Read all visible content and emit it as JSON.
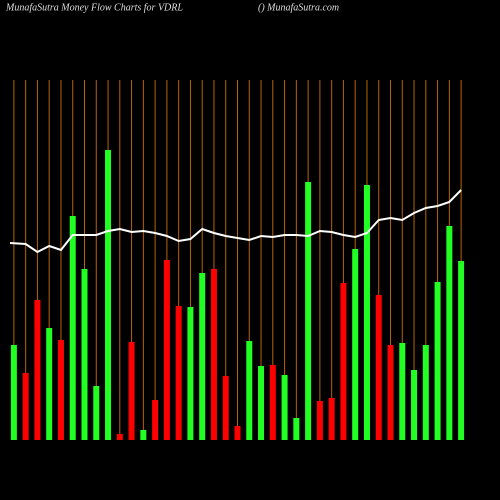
{
  "chart_data": {
    "type": "bar",
    "title": "MunafaSutra  Money Flow  Charts for VDRL",
    "site": "() MunafaSutra.com",
    "ylim": [
      0,
      300
    ],
    "grid_color": "#b8620a",
    "bars": {
      "values": [
        95,
        67,
        140,
        112,
        100,
        224,
        171,
        54,
        290,
        6,
        98,
        10,
        40,
        180,
        134,
        133,
        167,
        171,
        64,
        14,
        99,
        74,
        75,
        65,
        22,
        258,
        39,
        42,
        157,
        191,
        255,
        145,
        95,
        97,
        70,
        95,
        158,
        214,
        179
      ],
      "colors": [
        "#22ff22",
        "#ff0000",
        "#ff0000",
        "#22ff22",
        "#ff0000",
        "#22ff22",
        "#22ff22",
        "#22ff22",
        "#22ff22",
        "#ff0000",
        "#ff0000",
        "#22ff22",
        "#ff0000",
        "#ff0000",
        "#ff0000",
        "#22ff22",
        "#22ff22",
        "#ff0000",
        "#ff0000",
        "#ff0000",
        "#22ff22",
        "#22ff22",
        "#ff0000",
        "#22ff22",
        "#22ff22",
        "#22ff22",
        "#ff0000",
        "#ff0000",
        "#ff0000",
        "#22ff22",
        "#22ff22",
        "#ff0000",
        "#ff0000",
        "#22ff22",
        "#22ff22",
        "#22ff22",
        "#22ff22",
        "#22ff22",
        "#22ff22"
      ]
    },
    "line": {
      "color": "#ffffff",
      "values": [
        197,
        196,
        188,
        194,
        190,
        205,
        205,
        205,
        209,
        211,
        208,
        209,
        207,
        204,
        199,
        201,
        211,
        207,
        204,
        202,
        200,
        204,
        203,
        205,
        205,
        204,
        209,
        208,
        205,
        203,
        207,
        220,
        222,
        220,
        227,
        232,
        234,
        238,
        250
      ]
    }
  }
}
